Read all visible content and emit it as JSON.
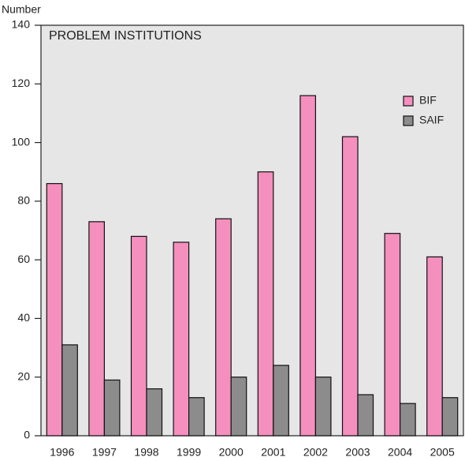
{
  "chart_data": {
    "type": "bar",
    "title": "PROBLEM INSTITUTIONS",
    "y_label": "Number",
    "categories": [
      "1996",
      "1997",
      "1998",
      "1999",
      "2000",
      "2001",
      "2002",
      "2003",
      "2004",
      "2005"
    ],
    "series": [
      {
        "name": "BIF",
        "color": "#f48fbe",
        "values": [
          86,
          73,
          68,
          66,
          74,
          90,
          116,
          102,
          69,
          61
        ]
      },
      {
        "name": "SAIF",
        "color": "#8c8c8c",
        "values": [
          31,
          19,
          16,
          13,
          20,
          24,
          20,
          14,
          11,
          13
        ]
      }
    ],
    "ylim": [
      0,
      140
    ],
    "yticks": [
      0,
      20,
      40,
      60,
      80,
      100,
      120,
      140
    ],
    "legend": "upper right"
  }
}
